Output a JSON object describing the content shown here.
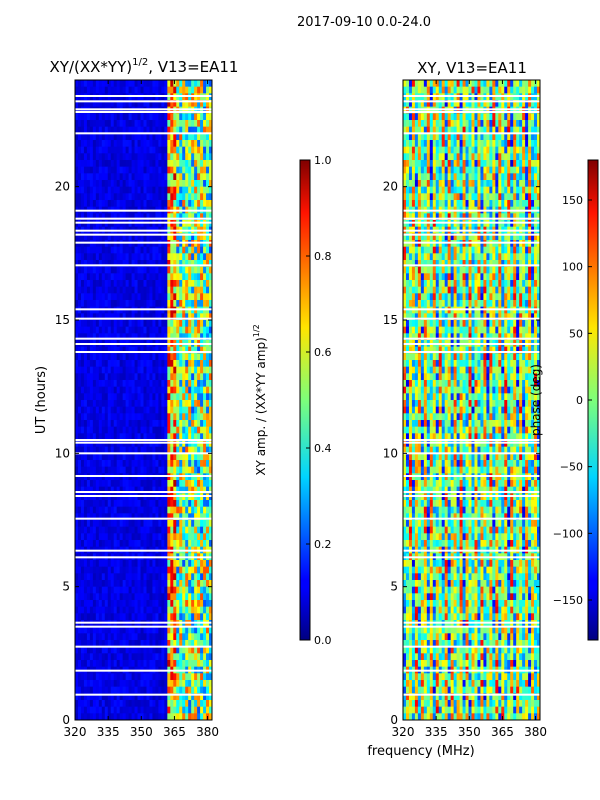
{
  "figure": {
    "suptitle": "2017-09-10 0.0-24.0",
    "xlabel_shared": "frequency (MHz)"
  },
  "chart_data": [
    {
      "type": "heatmap",
      "title_main": "XY/(XX*YY)",
      "title_exp": "1/2",
      "title_tail": ", V13=EA11",
      "x": {
        "min": 320,
        "max": 382,
        "ticks": [
          320,
          335,
          350,
          365,
          380
        ],
        "label": "frequency (MHz)"
      },
      "y": {
        "min": 0,
        "max": 24,
        "ticks": [
          0,
          5,
          10,
          15,
          20
        ],
        "label": "UT (hours)"
      },
      "colorbar": {
        "min": 0.0,
        "max": 1.0,
        "ticks": [
          "0.0",
          "0.2",
          "0.4",
          "0.6",
          "0.8",
          "1.0"
        ],
        "label_main": "XY amp. / (XX*YY amp)",
        "label_exp": "1/2"
      },
      "background_level": 0.06,
      "bright_band_MHz": [
        362,
        382
      ],
      "gaps_hours": [
        0.95,
        1.85,
        2.75,
        3.5,
        3.65,
        6.1,
        6.35,
        7.55,
        8.4,
        8.55,
        9.15,
        10.0,
        10.4,
        10.5,
        13.8,
        14.1,
        14.3,
        15.05,
        15.4,
        17.05,
        17.9,
        18.2,
        18.35,
        18.65,
        18.8,
        19.1,
        22.0,
        22.8,
        22.9,
        23.2,
        23.4
      ]
    },
    {
      "type": "heatmap",
      "title_main": "XY",
      "title_tail": ", V13=EA11",
      "x": {
        "min": 320,
        "max": 382,
        "ticks": [
          320,
          335,
          350,
          365,
          380
        ],
        "label": "frequency (MHz)"
      },
      "y": {
        "min": 0,
        "max": 24,
        "ticks": [
          0,
          5,
          10,
          15,
          20
        ],
        "label": ""
      },
      "colorbar": {
        "min": -180,
        "max": 180,
        "ticks": [
          "−150",
          "−100",
          "−50",
          "0",
          "50",
          "100",
          "150"
        ],
        "tick_values": [
          -150,
          -100,
          -50,
          0,
          50,
          100,
          150
        ],
        "label_main": "phase (deg)"
      },
      "gaps_hours": [
        0.95,
        1.85,
        2.75,
        3.5,
        3.65,
        6.1,
        6.35,
        7.55,
        8.4,
        8.55,
        9.15,
        10.0,
        10.4,
        10.5,
        13.8,
        14.1,
        14.3,
        15.05,
        15.4,
        17.05,
        17.9,
        18.2,
        18.35,
        18.65,
        18.8,
        19.1,
        22.0,
        22.8,
        22.9,
        23.2,
        23.4
      ]
    }
  ]
}
